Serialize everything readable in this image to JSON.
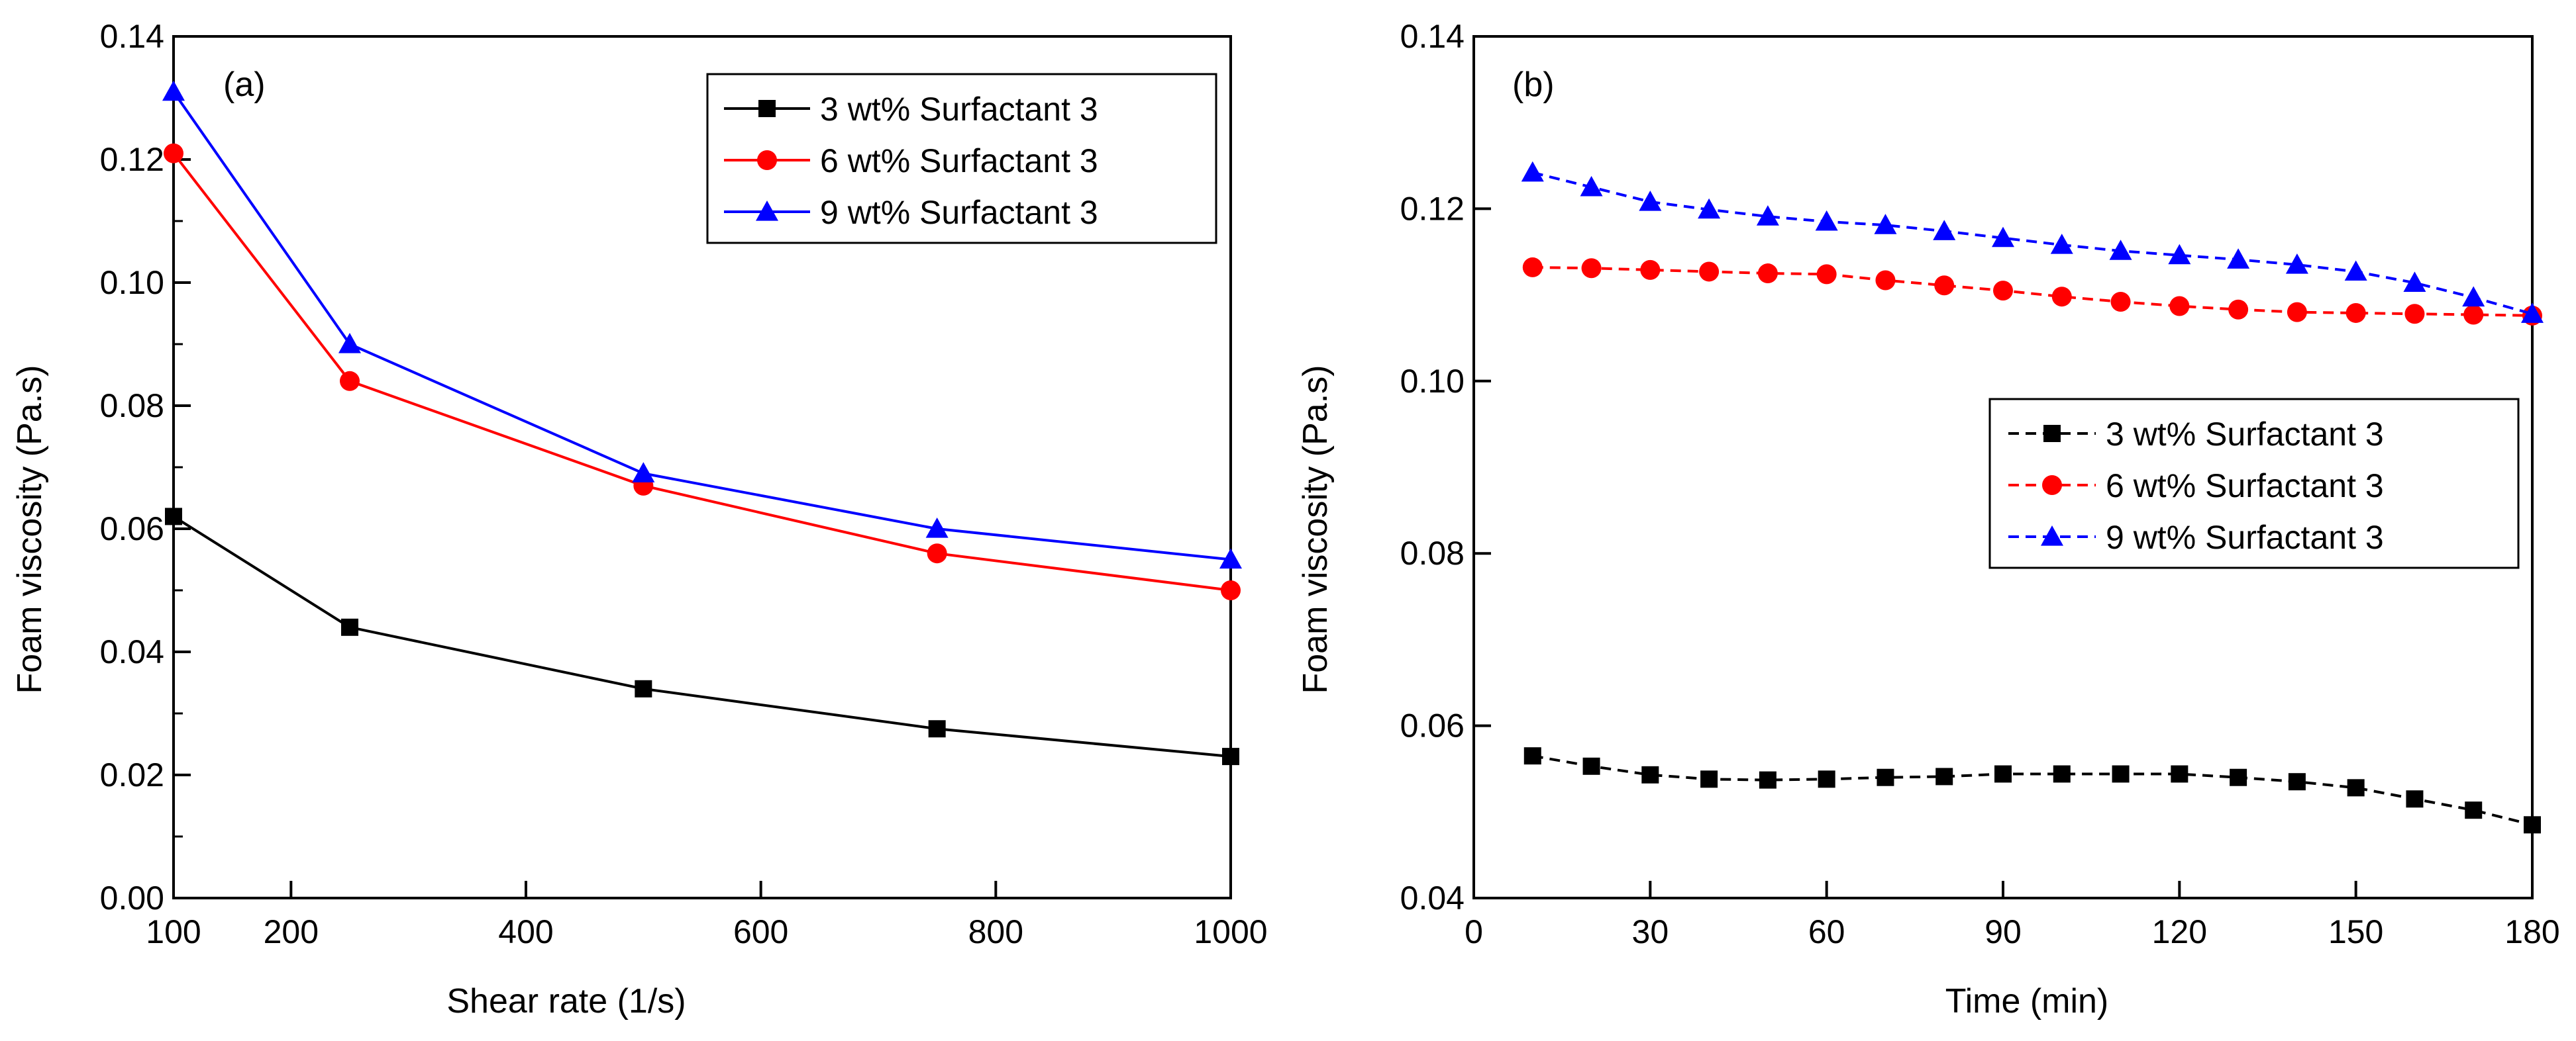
{
  "chart_data": [
    {
      "type": "line",
      "panel_label": "(a)",
      "xlabel": "Shear rate (1/s)",
      "ylabel": "Foam viscosity (Pa.s)",
      "xlim": [
        100,
        1000
      ],
      "ylim": [
        0.0,
        0.14
      ],
      "xticks": [
        100,
        200,
        400,
        600,
        800,
        1000
      ],
      "xtick_labels": [
        "100",
        "200",
        "400",
        "600",
        "800",
        "1000"
      ],
      "yticks": [
        0.0,
        0.02,
        0.04,
        0.06,
        0.08,
        0.1,
        0.12,
        0.14
      ],
      "ytick_labels": [
        "0.00",
        "0.02",
        "0.04",
        "0.06",
        "0.08",
        "0.10",
        "0.12",
        "0.14"
      ],
      "legend_position": "top-right",
      "x": [
        100,
        250,
        500,
        750,
        1000
      ],
      "series": [
        {
          "name": "3 wt% Surfactant 3",
          "color": "#000000",
          "marker": "square",
          "line_style": "solid",
          "values": [
            0.062,
            0.044,
            0.034,
            0.0275,
            0.023
          ]
        },
        {
          "name": "6 wt% Surfactant 3",
          "color": "#ff0000",
          "marker": "circle",
          "line_style": "solid",
          "values": [
            0.121,
            0.084,
            0.067,
            0.056,
            0.05
          ]
        },
        {
          "name": "9 wt% Surfactant 3",
          "color": "#0000ff",
          "marker": "triangle",
          "line_style": "solid",
          "values": [
            0.131,
            0.09,
            0.069,
            0.06,
            0.055
          ]
        }
      ]
    },
    {
      "type": "line",
      "panel_label": "(b)",
      "xlabel": "Time (min)",
      "ylabel": "Foam viscosity (Pa.s)",
      "xlim": [
        0,
        180
      ],
      "ylim": [
        0.04,
        0.14
      ],
      "xticks": [
        0,
        30,
        60,
        90,
        120,
        150,
        180
      ],
      "xtick_labels": [
        "0",
        "30",
        "60",
        "90",
        "120",
        "150",
        "180"
      ],
      "yticks": [
        0.04,
        0.06,
        0.08,
        0.1,
        0.12,
        0.14
      ],
      "ytick_labels": [
        "0.04",
        "0.06",
        "0.08",
        "0.10",
        "0.12",
        "0.14"
      ],
      "legend_position": "center-right",
      "x": [
        10,
        20,
        30,
        40,
        50,
        60,
        70,
        80,
        90,
        100,
        110,
        120,
        130,
        140,
        150,
        160,
        170,
        180
      ],
      "series": [
        {
          "name": "3 wt% Surfactant 3",
          "color": "#000000",
          "marker": "square",
          "line_style": "dashed",
          "values": [
            0.0565,
            0.0553,
            0.0543,
            0.0538,
            0.0537,
            0.0538,
            0.054,
            0.0541,
            0.0544,
            0.0544,
            0.0544,
            0.0544,
            0.054,
            0.0535,
            0.0528,
            0.0515,
            0.0502,
            0.0485
          ]
        },
        {
          "name": "6 wt% Surfactant 3",
          "color": "#ff0000",
          "marker": "circle",
          "line_style": "dashed",
          "values": [
            0.1132,
            0.1131,
            0.1129,
            0.1127,
            0.1125,
            0.1124,
            0.1117,
            0.1111,
            0.1105,
            0.1098,
            0.1092,
            0.1087,
            0.1083,
            0.108,
            0.1079,
            0.1078,
            0.1077,
            0.1076
          ]
        },
        {
          "name": "9 wt% Surfactant 3",
          "color": "#0000ff",
          "marker": "triangle",
          "line_style": "dashed",
          "values": [
            0.1242,
            0.1225,
            0.1208,
            0.1199,
            0.1191,
            0.1185,
            0.1181,
            0.1174,
            0.1166,
            0.1158,
            0.1151,
            0.1146,
            0.1141,
            0.1135,
            0.1127,
            0.1114,
            0.1097,
            0.1078
          ]
        }
      ]
    }
  ]
}
